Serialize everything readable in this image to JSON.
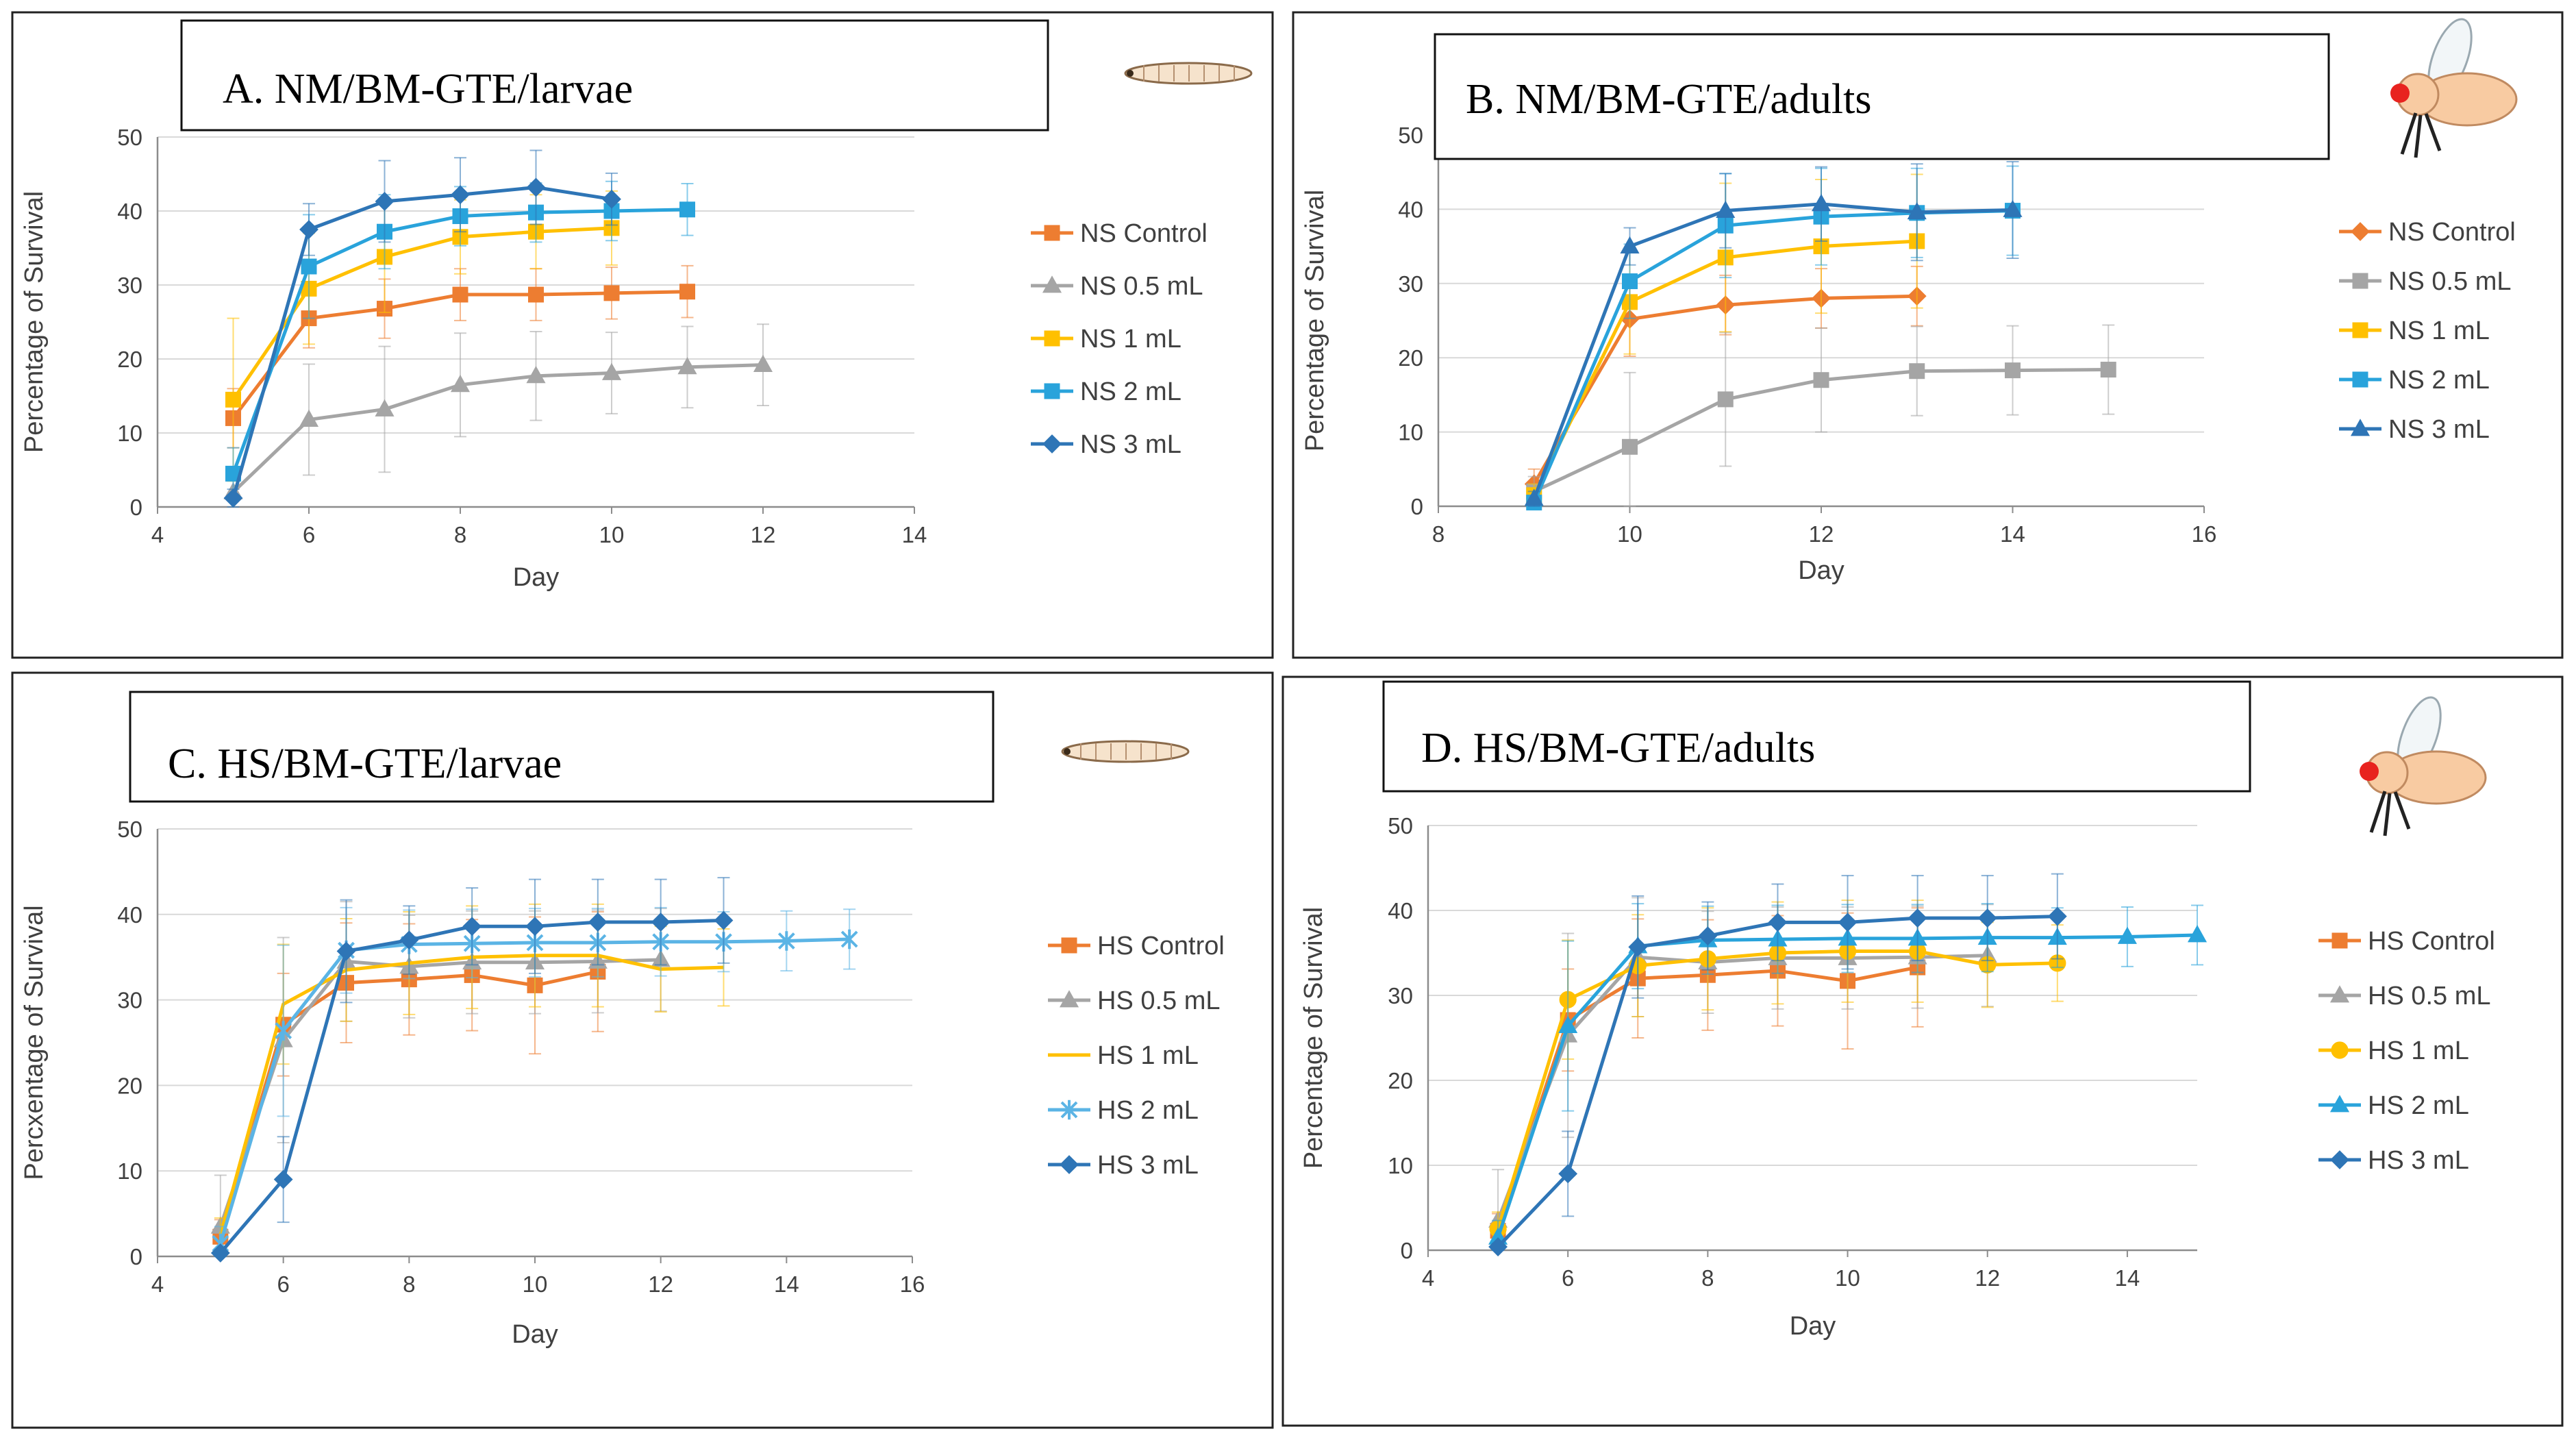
{
  "chart_data": [
    {
      "id": "A",
      "type": "line",
      "title": "A. NM/BM-GTE/larvae",
      "icon": "larva-icon",
      "xlabel": "Day",
      "ylabel": "Percentage of Survival",
      "xlim": [
        4,
        14
      ],
      "ylim": [
        0,
        50
      ],
      "xticks": [
        "4",
        "6",
        "8",
        "10",
        "12",
        "14"
      ],
      "yticks": [
        "0",
        "10",
        "20",
        "30",
        "40",
        "50"
      ],
      "series": [
        {
          "name": "NS Control",
          "color": "#ED7D31",
          "marker": "square",
          "x": [
            5,
            6,
            7,
            8,
            9,
            10,
            11
          ],
          "y": [
            12,
            25.5,
            26.8,
            28.7,
            28.7,
            28.9,
            29.1
          ],
          "err": [
            4,
            4,
            4,
            3.5,
            3.5,
            3.5,
            3.5
          ]
        },
        {
          "name": "NS 0.5 mL",
          "color": "#A5A5A5",
          "marker": "triangle",
          "x": [
            5,
            6,
            7,
            8,
            9,
            10,
            11,
            12
          ],
          "y": [
            2,
            11.8,
            13.2,
            16.5,
            17.7,
            18.1,
            18.9,
            19.2
          ],
          "err": [
            3,
            7.5,
            8.5,
            7,
            6,
            5.5,
            5.5,
            5.5
          ]
        },
        {
          "name": "NS 1 mL",
          "color": "#FFC000",
          "marker": "square",
          "x": [
            5,
            6,
            7,
            8,
            9,
            10
          ],
          "y": [
            14.5,
            29.5,
            33.8,
            36.5,
            37.2,
            37.7
          ],
          "err": [
            11,
            7.5,
            7.5,
            5,
            5,
            5
          ]
        },
        {
          "name": "NS 2 mL",
          "color": "#29A3DB",
          "marker": "square",
          "x": [
            5,
            6,
            7,
            8,
            9,
            10,
            11
          ],
          "y": [
            4.5,
            32.5,
            37.2,
            39.3,
            39.8,
            40,
            40.2
          ],
          "err": [
            3.5,
            7,
            5,
            4,
            4,
            4,
            3.5
          ]
        },
        {
          "name": "NS 3 mL",
          "color": "#2E75B6",
          "marker": "diamond",
          "x": [
            5,
            6,
            7,
            8,
            9,
            10
          ],
          "y": [
            1.2,
            37.5,
            41.3,
            42.2,
            43.2,
            41.6
          ],
          "err": [
            1.2,
            3.5,
            5.5,
            5,
            5,
            3.5
          ]
        }
      ]
    },
    {
      "id": "B",
      "type": "line",
      "title": "B. NM/BM-GTE/adults",
      "icon": "fly-icon",
      "xlabel": "Day",
      "ylabel": "Percentage of Survival",
      "xlim": [
        8,
        16
      ],
      "ylim": [
        0,
        50
      ],
      "xticks": [
        "8",
        "10",
        "12",
        "14",
        "16"
      ],
      "yticks": [
        "0",
        "10",
        "20",
        "30",
        "40",
        "50"
      ],
      "series": [
        {
          "name": "NS Control",
          "color": "#ED7D31",
          "marker": "diamond",
          "x": [
            9,
            10,
            11,
            12,
            13
          ],
          "y": [
            3,
            25.2,
            27.1,
            28,
            28.3
          ],
          "err": [
            2,
            5,
            4,
            4,
            4
          ]
        },
        {
          "name": "NS 0.5 mL",
          "color": "#A5A5A5",
          "marker": "square",
          "x": [
            9,
            10,
            11,
            12,
            13,
            14,
            15
          ],
          "y": [
            2,
            8,
            14.4,
            17,
            18.2,
            18.3,
            18.4
          ],
          "err": [
            2,
            10,
            9,
            7,
            6,
            6,
            6
          ]
        },
        {
          "name": "NS 1 mL",
          "color": "#FFC000",
          "marker": "square",
          "x": [
            9,
            10,
            11,
            12,
            13
          ],
          "y": [
            1.5,
            27.5,
            33.5,
            35,
            35.7
          ],
          "err": [
            1.5,
            7,
            10,
            9,
            9
          ]
        },
        {
          "name": "NS 2 mL",
          "color": "#29A3DB",
          "marker": "square",
          "x": [
            9,
            10,
            11,
            12,
            13,
            14
          ],
          "y": [
            0.5,
            30.3,
            37.8,
            39,
            39.5,
            39.8
          ],
          "err": [
            0.5,
            5,
            7,
            6.5,
            6,
            6
          ]
        },
        {
          "name": "NS 3 mL",
          "color": "#2E75B6",
          "marker": "triangle",
          "x": [
            9,
            10,
            11,
            12,
            13,
            14
          ],
          "y": [
            1,
            35,
            39.8,
            40.7,
            39.6,
            39.9
          ],
          "err": [
            1,
            2.5,
            5,
            5,
            6.5,
            6.5
          ]
        }
      ]
    },
    {
      "id": "C",
      "type": "line",
      "title": "C. HS/BM-GTE/larvae",
      "icon": "larva-icon",
      "xlabel": "Day",
      "ylabel": "Percxentage of Survival",
      "xlim": [
        4,
        16
      ],
      "ylim": [
        0,
        50
      ],
      "xticks": [
        "4",
        "6",
        "8",
        "10",
        "12",
        "14",
        "16"
      ],
      "yticks": [
        "0",
        "10",
        "20",
        "30",
        "40",
        "50"
      ],
      "series": [
        {
          "name": "HS Control",
          "color": "#ED7D31",
          "marker": "square",
          "x": [
            5,
            6,
            7,
            8,
            9,
            10,
            11
          ],
          "y": [
            2.3,
            27.1,
            32,
            32.4,
            32.9,
            31.7,
            33.3
          ],
          "err": [
            2,
            6,
            7,
            6.5,
            6.5,
            8,
            7
          ]
        },
        {
          "name": "HS 0.5 mL",
          "color": "#A5A5A5",
          "marker": "triangle",
          "x": [
            5,
            6,
            7,
            8,
            9,
            10,
            11,
            12
          ],
          "y": [
            3.5,
            25.3,
            34.5,
            33.9,
            34.4,
            34.4,
            34.5,
            34.7
          ],
          "err": [
            6,
            12,
            7,
            6,
            6,
            6,
            6,
            6
          ]
        },
        {
          "name": "HS 1 mL",
          "color": "#FFC000",
          "marker": "none",
          "x": [
            5,
            6,
            7,
            8,
            9,
            10,
            11,
            12,
            13
          ],
          "y": [
            2.5,
            29.5,
            33.5,
            34.3,
            35,
            35.2,
            35.2,
            33.6,
            33.8
          ],
          "err": [
            2,
            7,
            6,
            6,
            6,
            6,
            6,
            5,
            4.5
          ]
        },
        {
          "name": "HS 2 mL",
          "color": "#5BB4E5",
          "marker": "star",
          "x": [
            5,
            6,
            7,
            8,
            9,
            10,
            11,
            12,
            13,
            14,
            15
          ],
          "y": [
            1.5,
            26.4,
            35.8,
            36.5,
            36.6,
            36.7,
            36.7,
            36.8,
            36.8,
            36.9,
            37.1
          ],
          "err": [
            2,
            10,
            5,
            4,
            4,
            4,
            4,
            4,
            3.5,
            3.5,
            3.5
          ]
        },
        {
          "name": "HS 3 mL",
          "color": "#2E75B6",
          "marker": "diamond",
          "x": [
            5,
            6,
            7,
            8,
            9,
            10,
            11,
            12,
            13
          ],
          "y": [
            0.4,
            9,
            35.7,
            37,
            38.6,
            38.6,
            39.1,
            39.1,
            39.3
          ],
          "err": [
            0.4,
            5,
            6,
            4,
            4.5,
            5.5,
            5,
            5,
            5
          ]
        }
      ]
    },
    {
      "id": "D",
      "type": "line",
      "title": "D. HS/BM-GTE/adults",
      "icon": "fly-icon",
      "xlabel": "Day",
      "ylabel": "Percentage of Survival",
      "xlim": [
        4,
        15
      ],
      "ylim": [
        0,
        50
      ],
      "xticks": [
        "4",
        "6",
        "8",
        "10",
        "12",
        "14"
      ],
      "yticks": [
        "0",
        "10",
        "20",
        "30",
        "40",
        "50"
      ],
      "series": [
        {
          "name": "HS Control",
          "color": "#ED7D31",
          "marker": "square",
          "x": [
            5,
            6,
            7,
            8,
            9,
            10,
            11
          ],
          "y": [
            2.3,
            27.1,
            32,
            32.4,
            32.9,
            31.7,
            33.3
          ],
          "err": [
            2,
            6,
            7,
            6.5,
            6.5,
            8,
            7
          ]
        },
        {
          "name": "HS 0.5 mL",
          "color": "#A5A5A5",
          "marker": "triangle",
          "x": [
            5,
            6,
            7,
            8,
            9,
            10,
            11,
            12
          ],
          "y": [
            3.5,
            25.3,
            34.5,
            33.9,
            34.4,
            34.4,
            34.5,
            34.7
          ],
          "err": [
            6,
            12,
            7,
            6,
            6,
            6,
            6,
            6
          ]
        },
        {
          "name": "HS 1 mL",
          "color": "#FFC000",
          "marker": "circle",
          "x": [
            5,
            6,
            7,
            8,
            9,
            10,
            11,
            12,
            13
          ],
          "y": [
            2.5,
            29.5,
            33.5,
            34.3,
            35,
            35.2,
            35.2,
            33.6,
            33.8
          ],
          "err": [
            2,
            7,
            6,
            6,
            6,
            6,
            6,
            5,
            4.5
          ]
        },
        {
          "name": "HS 2 mL",
          "color": "#29A3DB",
          "marker": "triangle",
          "x": [
            5,
            6,
            7,
            8,
            9,
            10,
            11,
            12,
            13,
            14,
            15
          ],
          "y": [
            1.5,
            26.4,
            35.8,
            36.5,
            36.6,
            36.7,
            36.7,
            36.8,
            36.8,
            36.9,
            37.1
          ],
          "err": [
            2,
            10,
            5,
            4,
            4,
            4,
            4,
            4,
            3.5,
            3.5,
            3.5
          ]
        },
        {
          "name": "HS 3 mL",
          "color": "#2E75B6",
          "marker": "diamond",
          "x": [
            5,
            6,
            7,
            8,
            9,
            10,
            11,
            12,
            13
          ],
          "y": [
            0.4,
            9,
            35.7,
            37,
            38.6,
            38.6,
            39.1,
            39.1,
            39.3
          ],
          "err": [
            0.4,
            5,
            6,
            4,
            4.5,
            5.5,
            5,
            5,
            5
          ]
        }
      ]
    }
  ]
}
